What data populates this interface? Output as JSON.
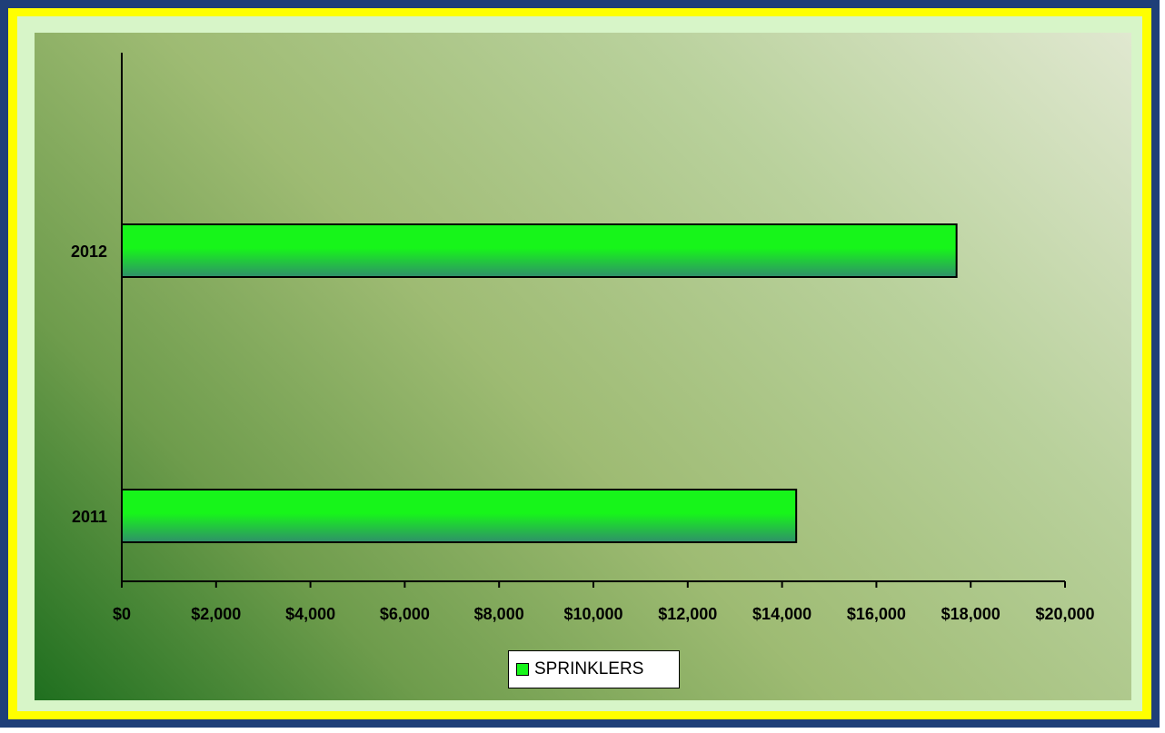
{
  "chart_data": {
    "type": "bar",
    "orientation": "horizontal",
    "categories": [
      "2012",
      "2011"
    ],
    "series": [
      {
        "name": "SPRINKLERS",
        "values": [
          17700,
          14300
        ]
      }
    ],
    "x_ticks": [
      "$0",
      "$2,000",
      "$4,000",
      "$6,000",
      "$8,000",
      "$10,000",
      "$12,000",
      "$14,000",
      "$16,000",
      "$18,000",
      "$20,000"
    ],
    "xlim": [
      0,
      20000
    ],
    "grid": false,
    "legend_position": "bottom",
    "colors": {
      "bar_top": "#17f51a",
      "bar_bottom": "#2f8f6a",
      "border_outer": "#1f3f78",
      "border_mid": "#ffff00"
    }
  }
}
